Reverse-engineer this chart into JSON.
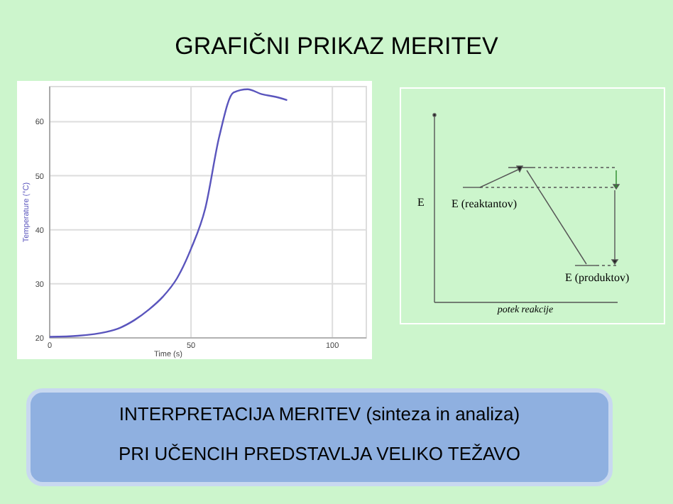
{
  "chart_data": [
    {
      "type": "line",
      "title": "GRAFIČNI PRIKAZ MERITEV",
      "xlabel": "Time (s)",
      "ylabel": "Temperature (°C)",
      "x": [
        0,
        10,
        20,
        25,
        30,
        35,
        40,
        45,
        50,
        55,
        60,
        65,
        70,
        75,
        80,
        84
      ],
      "series": [
        {
          "color": "#5a55bd",
          "values": [
            20.2,
            20.4,
            21.1,
            21.9,
            23.3,
            25.2,
            27.6,
            31,
            36.5,
            43.9,
            57.3,
            65.4,
            66,
            65.1,
            64.6,
            64
          ]
        }
      ],
      "xlim": [
        0,
        112
      ],
      "xticks": [
        0,
        50,
        100
      ],
      "ylim": [
        20,
        66.5
      ],
      "yticks": [
        20,
        30,
        40,
        50,
        60
      ],
      "grid": true,
      "marker": "none",
      "annotations": [
        "INTERPRETACIJA MERITEV (sinteza in analiza)",
        "PRI UČENCIH PREDSTAVLJA VELIKO TEŽAVO"
      ]
    },
    {
      "type": "other",
      "xlabel": "potek reakcije",
      "ylabel": "E",
      "annotations": [
        "E (reaktantov)",
        "E (produktov)"
      ]
    }
  ]
}
